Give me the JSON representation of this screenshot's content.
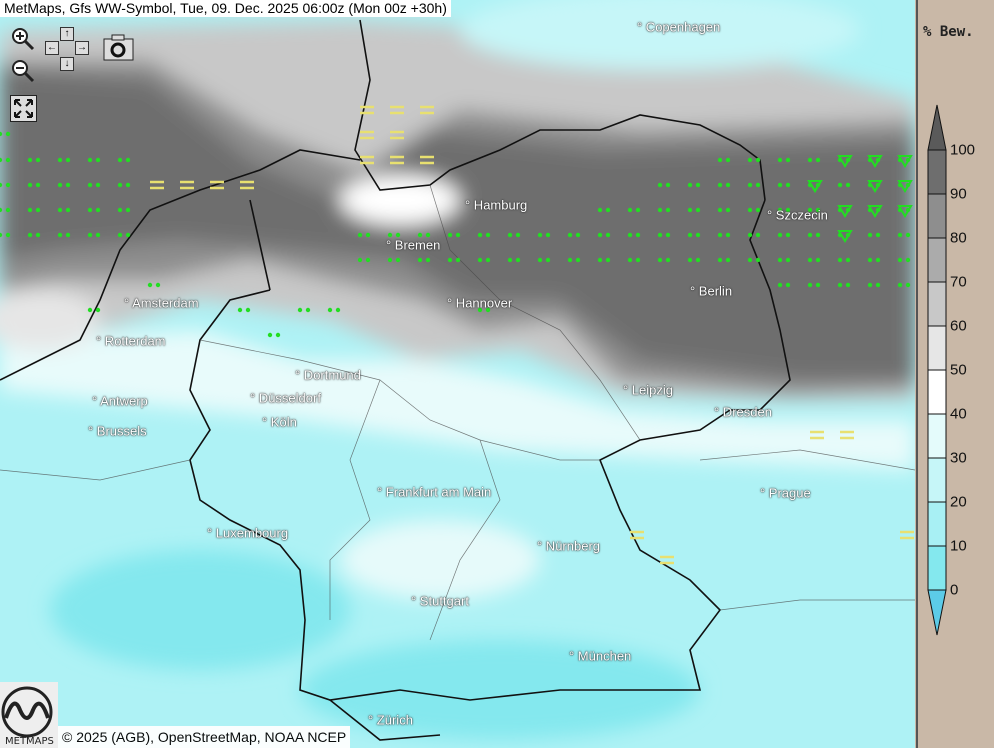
{
  "title": "MetMaps, Gfs WW-Symbol, Tue, 09. Dec. 2025 06:00z (Mon 00z +30h)",
  "controls": {
    "zoom_in": "zoom-in-icon",
    "zoom_out": "zoom-out-icon",
    "pan": "pan-arrows-icon",
    "screenshot": "camera-icon",
    "fullscreen": "fullscreen-icon",
    "arrows": {
      "up": "↑",
      "down": "↓",
      "left": "←",
      "right": "→"
    }
  },
  "cities": [
    {
      "name": "Copenhagen"
    },
    {
      "name": "Hamburg"
    },
    {
      "name": "Bremen"
    },
    {
      "name": "Szczecin"
    },
    {
      "name": "Amsterdam"
    },
    {
      "name": "Hannover"
    },
    {
      "name": "Berlin"
    },
    {
      "name": "Rotterdam"
    },
    {
      "name": "Dortmund"
    },
    {
      "name": "Leipzig"
    },
    {
      "name": "Antwerp"
    },
    {
      "name": "Düsseldorf"
    },
    {
      "name": "Dresden"
    },
    {
      "name": "Brussels"
    },
    {
      "name": "Köln"
    },
    {
      "name": "Prague"
    },
    {
      "name": "Frankfurt am Main"
    },
    {
      "name": "Luxembourg"
    },
    {
      "name": "Nürnberg"
    },
    {
      "name": "Stuttgart"
    },
    {
      "name": "München"
    },
    {
      "name": "Zürich"
    }
  ],
  "credit": "© 2025 (AGB), OpenStreetMap, NOAA NCEP",
  "logo_text": "METMAPS",
  "legend": {
    "title": "% Bew.",
    "ticks": [
      "100",
      "90",
      "80",
      "70",
      "60",
      "50",
      "40",
      "30",
      "20",
      "10",
      "0"
    ],
    "colors": [
      "#6e6e6e",
      "#8e8e8e",
      "#ababab",
      "#c8c8c8",
      "#e6e6e6",
      "#ffffff",
      "#e4fbfb",
      "#c6f6f8",
      "#a8f0f4",
      "#84e8ee"
    ],
    "over_color": "#5a5a5a",
    "under_color": "#5ccbe8"
  },
  "symbols": {
    "drizzle_color": "#22dd22",
    "fog_color": "#e8e070",
    "snow_color": "#22dd22"
  }
}
